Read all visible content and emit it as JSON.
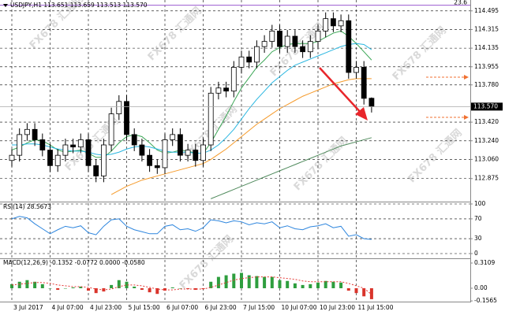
{
  "watermark": "FX678 汇通网",
  "chart_data": [
    {
      "type": "candlestick",
      "title": "USDJPY,H1 113.651 113.659 113.513 113.570",
      "x": [
        "3 Jul 2017",
        null,
        null,
        null,
        null,
        "4 Jul 07:00",
        null,
        null,
        null,
        null,
        "4 Jul 23:00",
        null,
        null,
        null,
        null,
        "5 Jul 15:00",
        null,
        null,
        null,
        null,
        "6 Jul 07:00",
        null,
        null,
        null,
        null,
        "6 Jul 23:00",
        null,
        null,
        null,
        null,
        "7 Jul 15:00",
        null,
        null,
        null,
        null,
        "10 Jul 07:00",
        null,
        null,
        null,
        null,
        "10 Jul 23:00",
        null,
        null,
        null,
        null,
        "11 Jul 15:00",
        null,
        null
      ],
      "open": [
        113.05,
        113.1,
        113.3,
        113.35,
        113.25,
        113.15,
        113.0,
        113.1,
        113.2,
        113.18,
        113.25,
        113.0,
        112.9,
        113.2,
        113.5,
        113.62,
        113.3,
        113.2,
        113.1,
        113.0,
        112.98,
        113.25,
        113.3,
        113.1,
        113.15,
        113.05,
        113.2,
        113.7,
        113.75,
        113.72,
        113.95,
        114.05,
        114.0,
        114.15,
        114.2,
        114.3,
        114.15,
        114.25,
        114.15,
        114.1,
        114.2,
        114.3,
        114.42,
        114.35,
        114.4,
        113.9,
        113.95,
        113.651
      ],
      "high": [
        113.16,
        113.36,
        113.41,
        113.41,
        113.31,
        113.21,
        113.16,
        113.26,
        113.26,
        113.31,
        113.31,
        113.06,
        113.26,
        113.56,
        113.68,
        113.68,
        113.36,
        113.26,
        113.16,
        113.06,
        113.31,
        113.36,
        113.36,
        113.21,
        113.21,
        113.26,
        113.76,
        113.81,
        113.81,
        114.01,
        114.11,
        114.11,
        114.21,
        114.26,
        114.36,
        114.36,
        114.31,
        114.31,
        114.21,
        114.26,
        114.36,
        114.48,
        114.48,
        114.46,
        114.46,
        114.01,
        114.01,
        113.659
      ],
      "low": [
        112.99,
        113.04,
        113.24,
        113.19,
        113.09,
        112.94,
        112.94,
        113.04,
        113.12,
        113.12,
        112.94,
        112.84,
        112.84,
        113.14,
        113.44,
        113.24,
        113.14,
        113.04,
        112.94,
        112.92,
        112.92,
        113.19,
        113.04,
        113.04,
        112.99,
        112.99,
        113.14,
        113.64,
        113.66,
        113.66,
        113.89,
        113.94,
        113.94,
        114.09,
        114.14,
        114.09,
        114.09,
        114.09,
        114.04,
        114.04,
        114.14,
        114.24,
        114.29,
        114.29,
        113.84,
        113.84,
        113.59,
        113.513
      ],
      "close": [
        113.1,
        113.3,
        113.35,
        113.25,
        113.15,
        113.0,
        113.1,
        113.2,
        113.18,
        113.25,
        113.0,
        112.9,
        113.2,
        113.5,
        113.62,
        113.3,
        113.2,
        113.1,
        113.0,
        112.98,
        113.25,
        113.3,
        113.1,
        113.15,
        113.05,
        113.2,
        113.7,
        113.75,
        113.72,
        113.95,
        114.05,
        114.0,
        114.15,
        114.2,
        114.3,
        114.15,
        114.25,
        114.15,
        114.1,
        114.2,
        114.3,
        114.42,
        114.35,
        114.4,
        113.9,
        113.95,
        113.65,
        113.57
      ],
      "up_color": "#ffffff",
      "down_color": "#000000",
      "series": [
        {
          "color": "#3aa655",
          "values": [
            113.15,
            113.18,
            113.22,
            113.25,
            113.24,
            113.2,
            113.15,
            113.13,
            113.14,
            113.15,
            113.12,
            113.08,
            113.08,
            113.14,
            113.22,
            113.28,
            113.3,
            113.28,
            113.22,
            113.15,
            113.12,
            113.13,
            113.15,
            113.14,
            113.12,
            113.12,
            113.22,
            113.35,
            113.48,
            113.62,
            113.75,
            113.85,
            113.95,
            114.02,
            114.1,
            114.14,
            114.17,
            114.18,
            114.18,
            114.18,
            114.2,
            114.24,
            114.28,
            114.3,
            114.25,
            114.18,
            114.1,
            114.02
          ]
        },
        {
          "color": "#29b6e0",
          "values": [
            113.2,
            113.2,
            113.21,
            113.21,
            113.2,
            113.18,
            113.16,
            113.15,
            113.14,
            113.14,
            113.13,
            113.11,
            113.1,
            113.11,
            113.13,
            113.16,
            113.18,
            113.19,
            113.18,
            113.16,
            113.14,
            113.13,
            113.13,
            113.13,
            113.12,
            113.12,
            113.15,
            113.2,
            113.27,
            113.35,
            113.45,
            113.55,
            113.64,
            113.72,
            113.8,
            113.86,
            113.92,
            113.97,
            114.0,
            114.03,
            114.06,
            114.09,
            114.12,
            114.15,
            114.17,
            114.18,
            114.17,
            114.12
          ]
        },
        {
          "color": "#f59a2a",
          "values": [
            null,
            null,
            null,
            null,
            null,
            null,
            null,
            null,
            null,
            null,
            null,
            null,
            null,
            112.72,
            112.76,
            112.8,
            112.83,
            112.86,
            112.88,
            112.9,
            112.92,
            112.94,
            112.96,
            112.98,
            113.0,
            113.02,
            113.06,
            113.11,
            113.16,
            113.22,
            113.28,
            113.34,
            113.4,
            113.45,
            113.5,
            113.55,
            113.59,
            113.63,
            113.67,
            113.7,
            113.73,
            113.76,
            113.79,
            113.81,
            113.83,
            113.84,
            113.84,
            113.84
          ]
        },
        {
          "color": "#4f8a5c",
          "values": [
            null,
            null,
            null,
            null,
            null,
            null,
            null,
            null,
            null,
            null,
            null,
            null,
            null,
            null,
            null,
            null,
            null,
            null,
            null,
            null,
            null,
            null,
            null,
            null,
            null,
            null,
            112.68,
            112.71,
            112.74,
            112.77,
            112.8,
            112.83,
            112.86,
            112.89,
            112.92,
            112.95,
            112.98,
            113.01,
            113.04,
            113.07,
            113.1,
            113.13,
            113.16,
            113.19,
            113.21,
            113.23,
            113.25,
            113.27
          ]
        }
      ],
      "current": {
        "value": 113.57,
        "label": "113.570"
      },
      "fib_line": {
        "value": 114.55,
        "label": "23.6",
        "color": "#9b59d0"
      },
      "ylim": [
        112.66,
        114.6
      ],
      "yticks": [
        114.495,
        114.315,
        114.135,
        113.955,
        {
          "value": 113.78,
          "label": "113.780"
        },
        {
          "value": 113.42,
          "label": "113.420"
        },
        {
          "value": 113.24,
          "label": "113.240"
        },
        {
          "value": 113.06,
          "label": "113.060"
        },
        112.875
      ],
      "grid": true
    },
    {
      "type": "line",
      "title": "RSI(14) 28.5673",
      "color": "#2e86de",
      "values": [
        70,
        75,
        72,
        60,
        50,
        40,
        48,
        55,
        52,
        56,
        42,
        38,
        55,
        68,
        70,
        55,
        48,
        44,
        40,
        40,
        55,
        58,
        48,
        50,
        45,
        52,
        68,
        66,
        62,
        66,
        64,
        58,
        62,
        60,
        64,
        52,
        56,
        50,
        48,
        54,
        56,
        60,
        52,
        55,
        35,
        38,
        30,
        28.5673
      ],
      "ylim": [
        0,
        100
      ],
      "yticks": [
        100,
        70,
        30,
        0
      ],
      "grid": true
    },
    {
      "type": "macd",
      "title": "MACD(12,26,9) -0.1352 -0.0772 0.0000 -0.0580",
      "up_color": "#2e9e3e",
      "down_color": "#d9342b",
      "values": [
        0.05,
        0.08,
        0.1,
        0.08,
        0.05,
        0.0,
        -0.02,
        0.0,
        0.01,
        0.02,
        -0.03,
        -0.06,
        -0.04,
        0.04,
        0.1,
        0.08,
        0.02,
        -0.02,
        -0.05,
        -0.07,
        -0.03,
        0.01,
        0.0,
        -0.01,
        -0.02,
        -0.01,
        0.08,
        0.14,
        0.16,
        0.18,
        0.19,
        0.16,
        0.15,
        0.14,
        0.14,
        0.1,
        0.09,
        0.06,
        0.04,
        0.05,
        0.07,
        0.09,
        0.08,
        0.07,
        -0.03,
        -0.06,
        -0.1,
        -0.1352
      ],
      "signal": {
        "color": "#e53935",
        "values": [
          0.04,
          0.05,
          0.06,
          0.07,
          0.07,
          0.06,
          0.04,
          0.03,
          0.02,
          0.02,
          0.01,
          -0.01,
          -0.02,
          -0.01,
          0.02,
          0.04,
          0.04,
          0.03,
          0.01,
          -0.01,
          -0.02,
          -0.02,
          -0.01,
          -0.01,
          -0.01,
          -0.01,
          0.01,
          0.04,
          0.07,
          0.1,
          0.12,
          0.13,
          0.14,
          0.14,
          0.14,
          0.13,
          0.12,
          0.11,
          0.09,
          0.08,
          0.08,
          0.08,
          0.08,
          0.08,
          0.06,
          0.03,
          0.0,
          -0.0772
        ]
      },
      "ylim": [
        -0.17,
        0.35
      ],
      "yticks": [
        0.3109,
        {
          "value": 0,
          "label": "0.00"
        },
        -0.1565
      ],
      "grid": false
    }
  ]
}
